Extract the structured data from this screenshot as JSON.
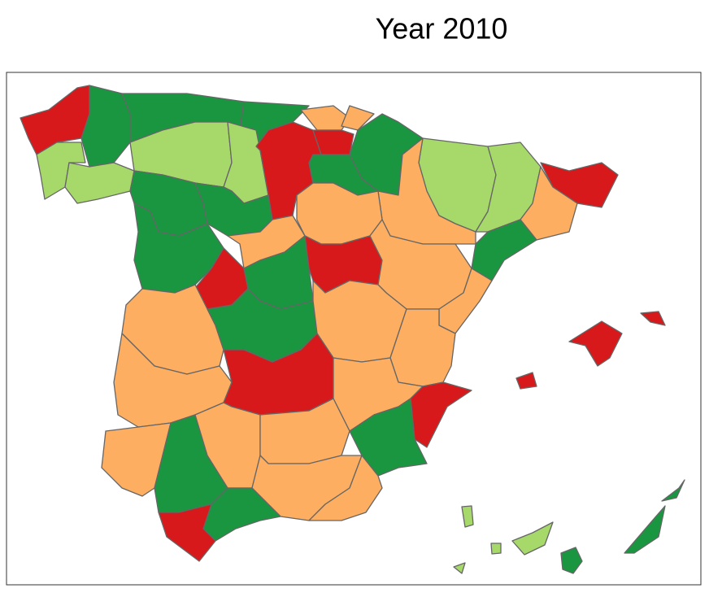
{
  "title": "Year 2010"
}
